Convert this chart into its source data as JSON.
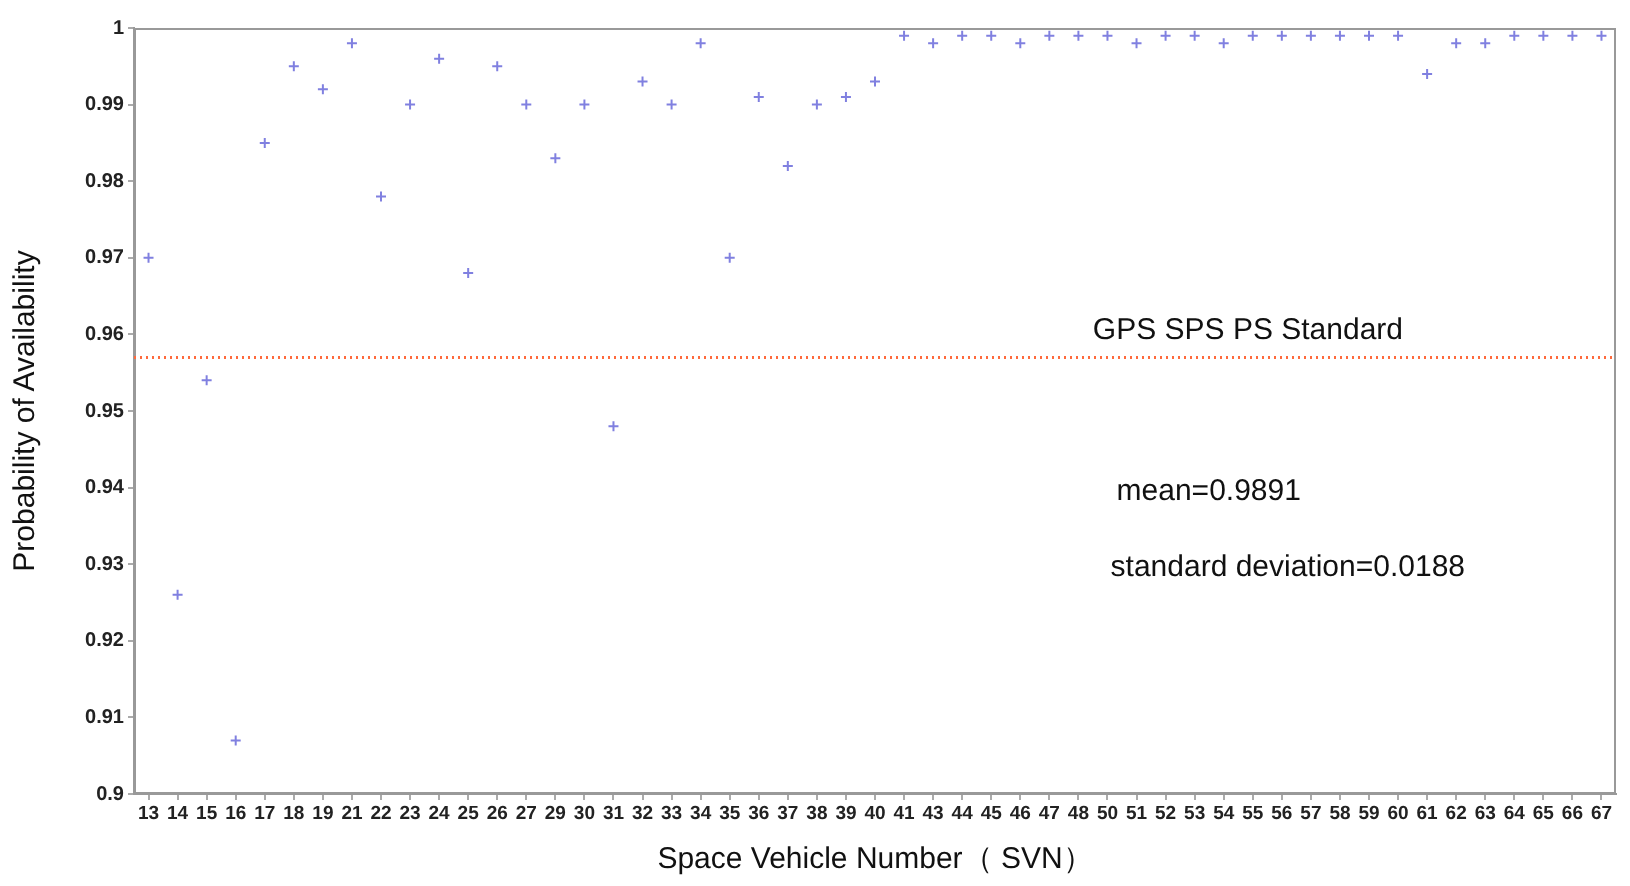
{
  "chart_data": {
    "type": "scatter",
    "xlabel": "Space Vehicle Number（ SVN）",
    "ylabel": "Probability of Availability",
    "categories": [
      "13",
      "14",
      "15",
      "16",
      "17",
      "18",
      "19",
      "21",
      "22",
      "23",
      "24",
      "25",
      "26",
      "27",
      "29",
      "30",
      "31",
      "32",
      "33",
      "34",
      "35",
      "36",
      "37",
      "38",
      "39",
      "40",
      "41",
      "43",
      "44",
      "45",
      "46",
      "47",
      "48",
      "50",
      "51",
      "52",
      "53",
      "54",
      "55",
      "56",
      "57",
      "58",
      "59",
      "60",
      "61",
      "62",
      "63",
      "64",
      "65",
      "66",
      "67"
    ],
    "values": [
      0.97,
      0.926,
      0.954,
      0.907,
      0.985,
      0.995,
      0.992,
      0.998,
      0.978,
      0.99,
      0.996,
      0.968,
      0.995,
      0.99,
      0.983,
      0.99,
      0.948,
      0.993,
      0.99,
      0.998,
      0.97,
      0.991,
      0.982,
      0.99,
      0.991,
      0.993,
      0.999,
      0.998,
      0.999,
      0.999,
      0.998,
      0.999,
      0.999,
      0.999,
      0.998,
      0.999,
      0.999,
      0.998,
      0.999,
      0.999,
      0.999,
      0.999,
      0.999,
      0.999,
      0.994,
      0.998,
      0.998,
      0.999,
      0.999,
      0.999,
      0.999
    ],
    "color": "#8080e0",
    "marker": "cross",
    "ylim": [
      0.9,
      1
    ],
    "yticks": [
      0.9,
      0.91,
      0.92,
      0.93,
      0.94,
      0.95,
      0.96,
      0.97,
      0.98,
      0.99,
      1
    ],
    "ref_lines": [
      {
        "axis": "y",
        "value": 0.957,
        "label": "GPS SPS PS Standard",
        "color": "#ff6a3d",
        "line_style": "dotted"
      }
    ],
    "annotations": [
      "mean=0.9891",
      "standard deviation=0.0188"
    ]
  }
}
